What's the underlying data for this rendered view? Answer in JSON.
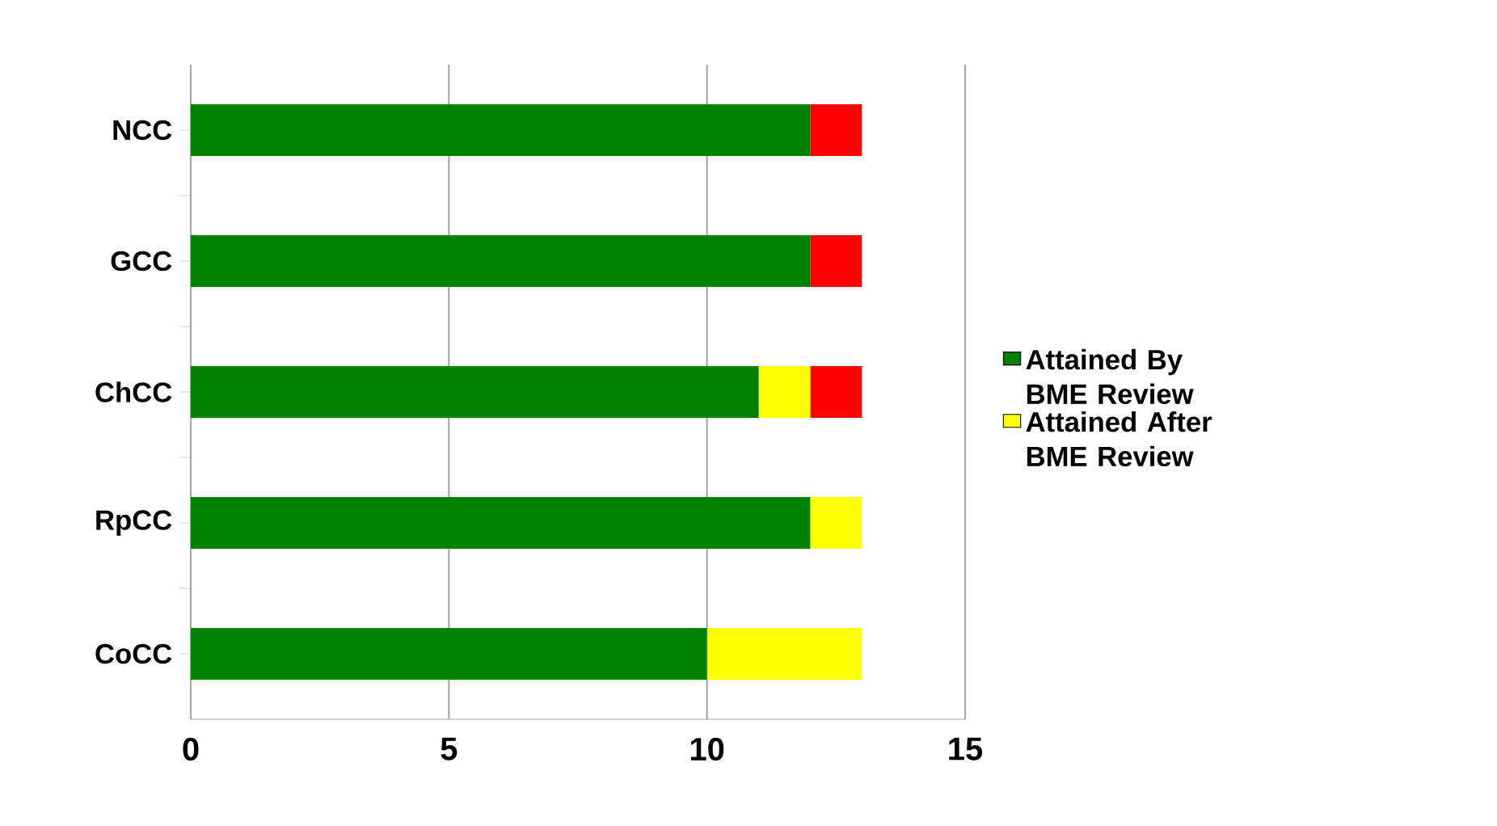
{
  "chart_data": {
    "type": "bar",
    "orientation": "horizontal",
    "stacked": true,
    "categories": [
      "NCC",
      "GCC",
      "ChCC",
      "RpCC",
      "CoCC"
    ],
    "series": [
      {
        "name": "Attained By BME Review",
        "color": "#008000",
        "values": [
          12,
          12,
          11,
          12,
          10
        ]
      },
      {
        "name": "Attained After BME Review",
        "color": "#ffff00",
        "values": [
          0,
          0,
          1,
          1,
          3
        ]
      },
      {
        "color": "#ff0000",
        "values": [
          1,
          1,
          1,
          0,
          0
        ]
      }
    ],
    "xlim": [
      0,
      15
    ],
    "xticks": [
      0,
      5,
      10,
      15
    ],
    "grid": "x",
    "legend": "right"
  }
}
